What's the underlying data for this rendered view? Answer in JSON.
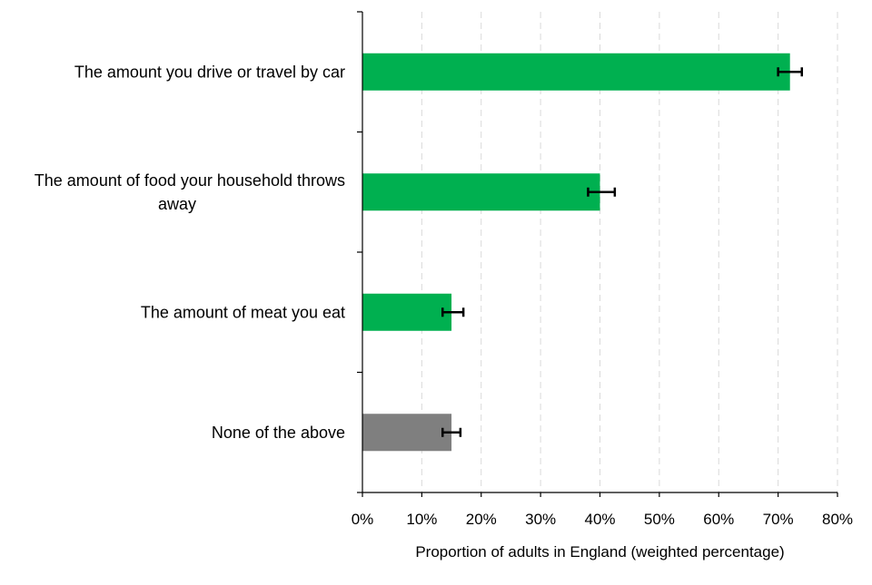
{
  "chart_data": {
    "type": "bar",
    "orientation": "horizontal",
    "categories": [
      "The amount you drive or travel by car",
      "The amount of food your household throws away",
      "The amount of meat you eat",
      "None of the above"
    ],
    "values": [
      72,
      40,
      15,
      15
    ],
    "error_low": [
      70,
      38,
      13.5,
      13.5
    ],
    "error_high": [
      74,
      42.5,
      17,
      16.5
    ],
    "colors": [
      "#00b050",
      "#00b050",
      "#00b050",
      "#7f7f7f"
    ],
    "xlabel": "Proportion of adults in England (weighted percentage)",
    "xlim": [
      0,
      80
    ],
    "xticks": [
      "0%",
      "10%",
      "20%",
      "30%",
      "40%",
      "50%",
      "60%",
      "70%",
      "80%"
    ],
    "grid": "vertical dashed",
    "legend": "none"
  }
}
